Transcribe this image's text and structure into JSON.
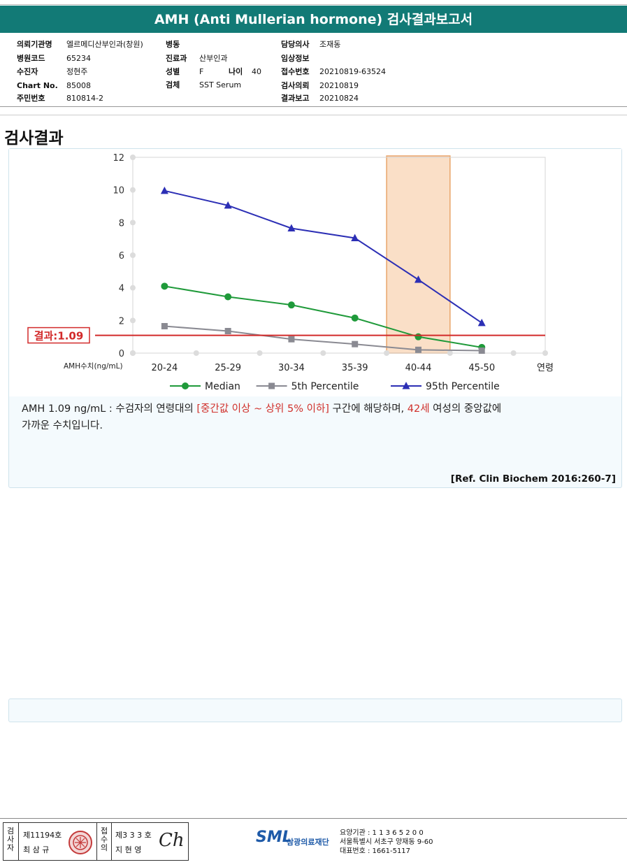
{
  "title": "AMH (Anti Mullerian hormone) 검사결과보고서",
  "header": {
    "col1": [
      {
        "label": "의뢰기관명",
        "value": "엘르메디산부인과(창원)"
      },
      {
        "label": "병원코드",
        "value": "65234"
      },
      {
        "label": "수진자",
        "value": "정현주"
      },
      {
        "label": "Chart No.",
        "value": "85008"
      },
      {
        "label": "주민번호",
        "value": "810814-2"
      }
    ],
    "col2": [
      {
        "label": "병동",
        "value": ""
      },
      {
        "label": "진료과",
        "value": "산부인과"
      },
      {
        "label": "성별",
        "value": "F"
      },
      {
        "label": "검체",
        "value": "SST Serum"
      }
    ],
    "age": {
      "label": "나이",
      "value": "40"
    },
    "col3": [
      {
        "label": "담당의사",
        "value": "조재동"
      },
      {
        "label": "임상정보",
        "value": ""
      },
      {
        "label": "접수번호",
        "value": "20210819-63524"
      },
      {
        "label": "검사의뢰",
        "value": "20210819"
      },
      {
        "label": "결과보고",
        "value": "20210824"
      }
    ]
  },
  "section_title": "검사결과",
  "chart_data": {
    "type": "line",
    "categories": [
      "20-24",
      "25-29",
      "30-34",
      "35-39",
      "40-44",
      "45-50"
    ],
    "x_axis_suffix": "연령",
    "ylabel": "AMH수치(ng/mL)",
    "ylim": [
      0,
      12
    ],
    "yticks": [
      0,
      2,
      4,
      6,
      8,
      10,
      12
    ],
    "grid": true,
    "legend_position": "bottom",
    "highlight_category": "40-44",
    "result_line": {
      "value": 1.09,
      "label": "결과:1.09",
      "color": "#d22a2a"
    },
    "series": [
      {
        "name": "Median",
        "color": "#1f9a3a",
        "marker": "circle",
        "values": [
          4.1,
          3.45,
          2.95,
          2.15,
          1.0,
          0.35
        ]
      },
      {
        "name": "5th Percentile",
        "color": "#8a8a92",
        "marker": "square",
        "values": [
          1.65,
          1.35,
          0.85,
          0.55,
          0.2,
          0.15
        ]
      },
      {
        "name": "95th Percentile",
        "color": "#2c2fb5",
        "marker": "triangle",
        "values": [
          9.95,
          9.05,
          7.65,
          7.05,
          4.5,
          1.85
        ]
      }
    ]
  },
  "comment": {
    "part1": "AMH  1.09 ng/mL : 수검자의 연령대의 ",
    "range": "[중간값 이상 ~ 상위 5% 이하]",
    "part2": "  구간에 해당하며, ",
    "age": "42세",
    "part3": " 여성의 중앙값에",
    "part4": "가까운 수치입니다."
  },
  "reference": "[Ref. Clin Biochem 2016:260-7]",
  "footer": {
    "label_examiner": "검사자",
    "examiner_no": "제11194호",
    "examiner_name": "최 삼 규",
    "label_reviewer": "접수의",
    "reviewer_no": "제3 3 3 호",
    "reviewer_name": "지 현 영",
    "signature": "Ch",
    "logo_text": "SML",
    "org_name": "삼광의료재단",
    "address_lines": [
      "요양기관 : 1 1 3 6 5 2 0 0",
      "서울특별시 서초구 양재동 9-60",
      "대표번호 : 1661-5117"
    ]
  }
}
